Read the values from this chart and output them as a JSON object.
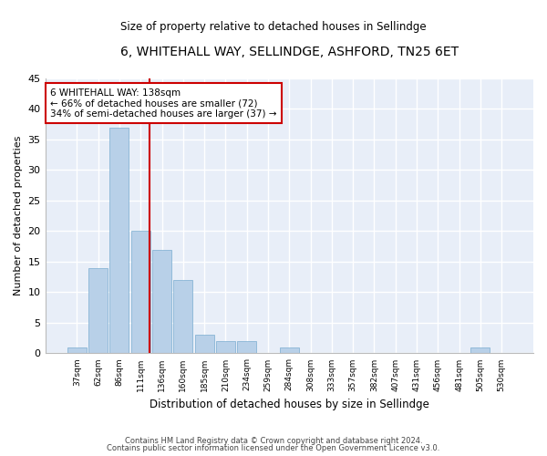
{
  "title": "6, WHITEHALL WAY, SELLINDGE, ASHFORD, TN25 6ET",
  "subtitle": "Size of property relative to detached houses in Sellindge",
  "xlabel": "Distribution of detached houses by size in Sellindge",
  "ylabel": "Number of detached properties",
  "bar_color": "#b8d0e8",
  "bar_edge_color": "#7aadd0",
  "bg_color": "#e8eef8",
  "grid_color": "white",
  "categories": [
    "37sqm",
    "62sqm",
    "86sqm",
    "111sqm",
    "136sqm",
    "160sqm",
    "185sqm",
    "210sqm",
    "234sqm",
    "259sqm",
    "284sqm",
    "308sqm",
    "333sqm",
    "357sqm",
    "382sqm",
    "407sqm",
    "431sqm",
    "456sqm",
    "481sqm",
    "505sqm",
    "530sqm"
  ],
  "values": [
    1,
    14,
    37,
    20,
    17,
    12,
    3,
    2,
    2,
    0,
    1,
    0,
    0,
    0,
    0,
    0,
    0,
    0,
    0,
    1,
    0
  ],
  "ylim": [
    0,
    45
  ],
  "yticks": [
    0,
    5,
    10,
    15,
    20,
    25,
    30,
    35,
    40,
    45
  ],
  "vline_pos": 3.43,
  "annotation_text": "6 WHITEHALL WAY: 138sqm\n← 66% of detached houses are smaller (72)\n34% of semi-detached houses are larger (37) →",
  "annotation_box_color": "#cc0000",
  "vline_color": "#cc0000",
  "footer1": "Contains HM Land Registry data © Crown copyright and database right 2024.",
  "footer2": "Contains public sector information licensed under the Open Government Licence v3.0."
}
